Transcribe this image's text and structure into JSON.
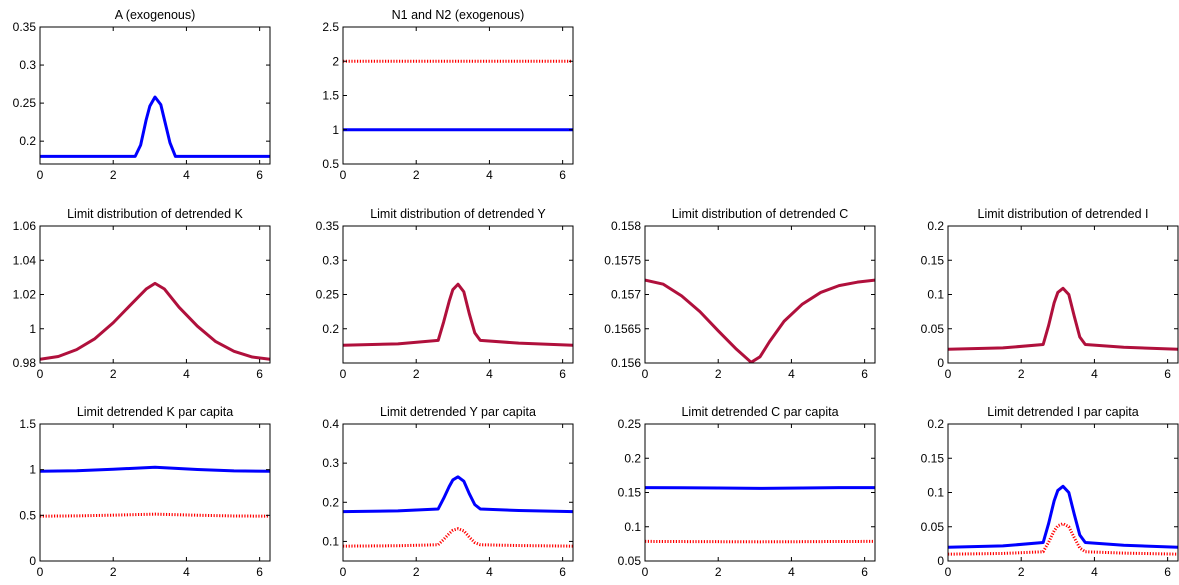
{
  "colors": {
    "blue": "#0000ff",
    "red": "#ff0000",
    "overlap": "#b0103c",
    "axis": "#000000"
  },
  "chart_data": [
    {
      "type": "line",
      "title": "A (exogenous)",
      "xlim": [
        0,
        6.2832
      ],
      "ylim": [
        0.17,
        0.35
      ],
      "xticks": [
        "0",
        "2",
        "4",
        "6"
      ],
      "yticks": [
        "0.2",
        "0.25",
        "0.3",
        "0.35"
      ],
      "series": [
        {
          "color": "blue",
          "style": "solid",
          "x": [
            0,
            2.6,
            2.75,
            2.9,
            3.0,
            3.1416,
            3.3,
            3.4,
            3.55,
            3.7,
            6.2832
          ],
          "y": [
            0.18,
            0.18,
            0.195,
            0.228,
            0.246,
            0.258,
            0.248,
            0.228,
            0.198,
            0.18,
            0.18
          ]
        }
      ]
    },
    {
      "type": "line",
      "title": "N1 and N2 (exogenous)",
      "xlim": [
        0,
        6.2832
      ],
      "ylim": [
        0.5,
        2.5
      ],
      "xticks": [
        "0",
        "2",
        "4",
        "6"
      ],
      "yticks": [
        "0.5",
        "1",
        "1.5",
        "2",
        "2.5"
      ],
      "series": [
        {
          "color": "red",
          "style": "dotted",
          "x": [
            0,
            6.2832
          ],
          "y": [
            2,
            2
          ]
        },
        {
          "color": "blue",
          "style": "solid",
          "x": [
            0,
            6.2832
          ],
          "y": [
            1,
            1
          ]
        }
      ]
    },
    {
      "type": "line",
      "title": "Limit distribution of detrended K",
      "xlim": [
        0,
        6.2832
      ],
      "ylim": [
        0.98,
        1.06
      ],
      "xticks": [
        "0",
        "2",
        "4",
        "6"
      ],
      "yticks": [
        "0.98",
        "1",
        "1.02",
        "1.04",
        "1.06"
      ],
      "series": [
        {
          "color": "overlap",
          "style": "solid",
          "x": [
            0,
            0.5,
            1.0,
            1.5,
            2.0,
            2.5,
            2.9,
            3.1416,
            3.4,
            3.8,
            4.3,
            4.8,
            5.3,
            5.8,
            6.2832
          ],
          "y": [
            0.9822,
            0.9838,
            0.9878,
            0.9942,
            1.0035,
            1.0145,
            1.0232,
            1.0265,
            1.0232,
            1.0125,
            1.0015,
            0.9925,
            0.9868,
            0.9835,
            0.9822
          ]
        }
      ]
    },
    {
      "type": "line",
      "title": "Limit distribution of detrended Y",
      "xlim": [
        0,
        6.2832
      ],
      "ylim": [
        0.15,
        0.35
      ],
      "xticks": [
        "0",
        "2",
        "4",
        "6"
      ],
      "yticks": [
        "0.2",
        "0.25",
        "0.3",
        "0.35"
      ],
      "series": [
        {
          "color": "overlap",
          "style": "solid",
          "x": [
            0,
            1.5,
            2.6,
            2.75,
            2.9,
            3.0,
            3.1416,
            3.3,
            3.45,
            3.6,
            3.75,
            4.8,
            6.2832
          ],
          "y": [
            0.176,
            0.178,
            0.183,
            0.21,
            0.24,
            0.257,
            0.265,
            0.254,
            0.222,
            0.194,
            0.183,
            0.179,
            0.176
          ]
        }
      ]
    },
    {
      "type": "line",
      "title": "Limit distribution of detrended C",
      "xlim": [
        0,
        6.2832
      ],
      "ylim": [
        0.156,
        0.158
      ],
      "xticks": [
        "0",
        "2",
        "4",
        "6"
      ],
      "yticks": [
        "0.156",
        "0.1565",
        "0.157",
        "0.1575",
        "0.158"
      ],
      "series": [
        {
          "color": "overlap",
          "style": "solid",
          "x": [
            0,
            0.5,
            1.0,
            1.5,
            2.0,
            2.5,
            2.9,
            3.1416,
            3.4,
            3.8,
            4.3,
            4.8,
            5.3,
            5.8,
            6.2832
          ],
          "y": [
            0.15721,
            0.15715,
            0.15698,
            0.15675,
            0.15647,
            0.1562,
            0.15601,
            0.15609,
            0.15631,
            0.15661,
            0.15686,
            0.15703,
            0.15713,
            0.15718,
            0.15721
          ]
        }
      ]
    },
    {
      "type": "line",
      "title": "Limit distribution of detrended I",
      "xlim": [
        0,
        6.2832
      ],
      "ylim": [
        0,
        0.2
      ],
      "xticks": [
        "0",
        "2",
        "4",
        "6"
      ],
      "yticks": [
        "0",
        "0.05",
        "0.1",
        "0.15",
        "0.2"
      ],
      "series": [
        {
          "color": "overlap",
          "style": "solid",
          "x": [
            0,
            1.5,
            2.6,
            2.75,
            2.9,
            3.0,
            3.1416,
            3.3,
            3.45,
            3.6,
            3.75,
            4.8,
            6.2832
          ],
          "y": [
            0.02,
            0.022,
            0.027,
            0.055,
            0.088,
            0.103,
            0.109,
            0.1,
            0.068,
            0.038,
            0.027,
            0.023,
            0.02
          ]
        }
      ]
    },
    {
      "type": "line",
      "title": "Limit detrended K par capita",
      "xlim": [
        0,
        6.2832
      ],
      "ylim": [
        0,
        1.5
      ],
      "xticks": [
        "0",
        "2",
        "4",
        "6"
      ],
      "yticks": [
        "0",
        "0.5",
        "1",
        "1.5"
      ],
      "series": [
        {
          "color": "red",
          "style": "dotted",
          "x": [
            0,
            1.0,
            2.0,
            3.1416,
            4.3,
            5.3,
            6.2832
          ],
          "y": [
            0.491,
            0.494,
            0.502,
            0.513,
            0.501,
            0.493,
            0.491
          ]
        },
        {
          "color": "blue",
          "style": "solid",
          "x": [
            0,
            1.0,
            2.0,
            3.1416,
            4.3,
            5.3,
            6.2832
          ],
          "y": [
            0.982,
            0.988,
            1.004,
            1.027,
            1.002,
            0.987,
            0.982
          ]
        }
      ]
    },
    {
      "type": "line",
      "title": "Limit detrended Y par capita",
      "xlim": [
        0,
        6.2832
      ],
      "ylim": [
        0.05,
        0.4
      ],
      "xticks": [
        "0",
        "2",
        "4",
        "6"
      ],
      "yticks": [
        "0.1",
        "0.2",
        "0.3",
        "0.4"
      ],
      "series": [
        {
          "color": "red",
          "style": "dotted",
          "x": [
            0,
            1.5,
            2.6,
            2.75,
            2.9,
            3.0,
            3.1416,
            3.3,
            3.45,
            3.6,
            3.75,
            4.8,
            6.2832
          ],
          "y": [
            0.088,
            0.089,
            0.0915,
            0.105,
            0.12,
            0.1285,
            0.1325,
            0.127,
            0.111,
            0.097,
            0.0915,
            0.0895,
            0.088
          ]
        },
        {
          "color": "blue",
          "style": "solid",
          "x": [
            0,
            1.5,
            2.6,
            2.75,
            2.9,
            3.0,
            3.1416,
            3.3,
            3.45,
            3.6,
            3.75,
            4.8,
            6.2832
          ],
          "y": [
            0.176,
            0.178,
            0.183,
            0.21,
            0.24,
            0.257,
            0.265,
            0.254,
            0.222,
            0.194,
            0.183,
            0.179,
            0.176
          ]
        }
      ]
    },
    {
      "type": "line",
      "title": "Limit detrended C par capita",
      "xlim": [
        0,
        6.2832
      ],
      "ylim": [
        0.05,
        0.25
      ],
      "xticks": [
        "0",
        "2",
        "4",
        "6"
      ],
      "yticks": [
        "0.05",
        "0.1",
        "0.15",
        "0.2",
        "0.25"
      ],
      "series": [
        {
          "color": "red",
          "style": "dotted",
          "x": [
            0,
            1.0,
            2.0,
            3.1416,
            4.3,
            5.3,
            6.2832
          ],
          "y": [
            0.0786,
            0.0784,
            0.0782,
            0.078,
            0.0782,
            0.0785,
            0.0786
          ]
        },
        {
          "color": "blue",
          "style": "solid",
          "x": [
            0,
            1.0,
            2.0,
            3.1416,
            4.3,
            5.3,
            6.2832
          ],
          "y": [
            0.1572,
            0.157,
            0.1565,
            0.156,
            0.1565,
            0.1571,
            0.1572
          ]
        }
      ]
    },
    {
      "type": "line",
      "title": "Limit detrended I par capita",
      "xlim": [
        0,
        6.2832
      ],
      "ylim": [
        0,
        0.2
      ],
      "xticks": [
        "0",
        "2",
        "4",
        "6"
      ],
      "yticks": [
        "0",
        "0.05",
        "0.1",
        "0.15",
        "0.2"
      ],
      "series": [
        {
          "color": "red",
          "style": "dotted",
          "x": [
            0,
            1.5,
            2.6,
            2.75,
            2.9,
            3.0,
            3.1416,
            3.3,
            3.45,
            3.6,
            3.75,
            4.8,
            6.2832
          ],
          "y": [
            0.01,
            0.011,
            0.0135,
            0.0275,
            0.044,
            0.0515,
            0.0545,
            0.05,
            0.034,
            0.019,
            0.0135,
            0.0115,
            0.01
          ]
        },
        {
          "color": "blue",
          "style": "solid",
          "x": [
            0,
            1.5,
            2.6,
            2.75,
            2.9,
            3.0,
            3.1416,
            3.3,
            3.45,
            3.6,
            3.75,
            4.8,
            6.2832
          ],
          "y": [
            0.02,
            0.022,
            0.027,
            0.055,
            0.088,
            0.103,
            0.109,
            0.1,
            0.068,
            0.038,
            0.027,
            0.023,
            0.02
          ]
        }
      ]
    }
  ]
}
